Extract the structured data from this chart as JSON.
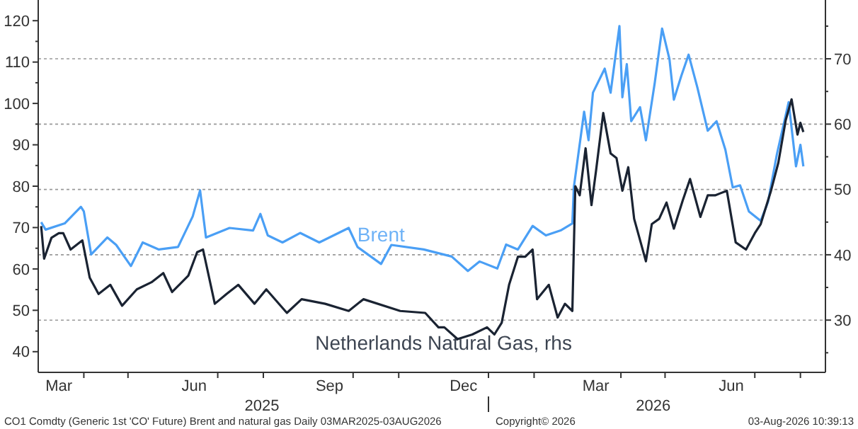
{
  "chart_data": {
    "type": "line",
    "xlim": [
      "2025-03-01",
      "2026-08-18"
    ],
    "xticks": [
      {
        "value": "2025-03-15",
        "label": "Mar"
      },
      {
        "value": "2025-04-01",
        "label": null
      },
      {
        "value": "2025-05-01",
        "label": null
      },
      {
        "value": "2025-06-15",
        "label": "Jun"
      },
      {
        "value": "2025-07-01",
        "label": null
      },
      {
        "value": "2025-08-01",
        "label": null
      },
      {
        "value": "2025-09-15",
        "label": "Sep"
      },
      {
        "value": "2025-10-01",
        "label": null
      },
      {
        "value": "2025-11-01",
        "label": null
      },
      {
        "value": "2025-12-15",
        "label": "Dec"
      },
      {
        "value": "2026-01-01",
        "label": null
      },
      {
        "value": "2026-02-01",
        "label": null
      },
      {
        "value": "2026-03-15",
        "label": "Mar"
      },
      {
        "value": "2026-04-01",
        "label": null
      },
      {
        "value": "2026-05-01",
        "label": null
      },
      {
        "value": "2026-06-15",
        "label": "Jun"
      },
      {
        "value": "2026-07-01",
        "label": null
      },
      {
        "value": "2026-08-01",
        "label": null
      }
    ],
    "x2lim": [
      "2025-03-01",
      "2026-08-18"
    ],
    "x2ticks": [
      {
        "value": "2025-07-31",
        "label": "2025"
      },
      {
        "value": "2026-01-01",
        "label": null
      },
      {
        "value": "2026-04-23",
        "label": "2026"
      }
    ],
    "ylim": [
      35,
      125
    ],
    "yticks": [
      40,
      {
        "value": 45,
        "label": null
      },
      50,
      {
        "value": 55,
        "label": null
      },
      60,
      {
        "value": 65,
        "label": null
      },
      70,
      {
        "value": 75,
        "label": null
      },
      80,
      {
        "value": 85,
        "label": null
      },
      90,
      {
        "value": 95,
        "label": null
      },
      100,
      {
        "value": 105,
        "label": null
      },
      110,
      {
        "value": 115,
        "label": null
      },
      120
    ],
    "y2lim": [
      22,
      79
    ],
    "y2ticks": [
      {
        "value": 25,
        "label": null
      },
      30,
      {
        "value": 35,
        "label": null
      },
      40,
      {
        "value": 45,
        "label": null
      },
      50,
      {
        "value": 55,
        "label": null
      },
      60,
      {
        "value": 65,
        "label": null
      },
      70,
      {
        "value": 75,
        "label": null
      }
    ],
    "grid": "y2",
    "series": [
      {
        "name": "Brent",
        "color": "#4a9ff5",
        "x": [
          "2025-03-03",
          "2025-03-06",
          "2025-03-19",
          "2025-03-30",
          "2025-04-01",
          "2025-04-06",
          "2025-04-17",
          "2025-04-23",
          "2025-05-03",
          "2025-05-11",
          "2025-05-22",
          "2025-06-04",
          "2025-06-14",
          "2025-06-19",
          "2025-06-23",
          "2025-07-09",
          "2025-07-25",
          "2025-07-30",
          "2025-08-04",
          "2025-08-14",
          "2025-08-26",
          "2025-09-08",
          "2025-09-28",
          "2025-10-04",
          "2025-10-20",
          "2025-10-27",
          "2025-11-18",
          "2025-12-07",
          "2025-12-18",
          "2025-12-26",
          "2026-01-07",
          "2026-01-13",
          "2026-01-21",
          "2026-01-31",
          "2026-02-09",
          "2026-02-19",
          "2026-02-27",
          "2026-02-28",
          "2026-03-07",
          "2026-03-10",
          "2026-03-13",
          "2026-03-21",
          "2026-03-25",
          "2026-03-31",
          "2026-04-02",
          "2026-04-05",
          "2026-04-08",
          "2026-04-14",
          "2026-04-18",
          "2026-04-24",
          "2026-04-29",
          "2026-05-04",
          "2026-05-07",
          "2026-05-12",
          "2026-05-17",
          "2026-05-23",
          "2026-05-30",
          "2026-06-05",
          "2026-06-11",
          "2026-06-16",
          "2026-06-21",
          "2026-06-27",
          "2026-07-05",
          "2026-07-10",
          "2026-07-16",
          "2026-07-24",
          "2026-07-29",
          "2026-08-01",
          "2026-08-03"
        ],
        "values": [
          71.3,
          69.5,
          71,
          75,
          73.9,
          63.5,
          67.6,
          65.8,
          60.7,
          66.4,
          64.7,
          65.3,
          72.7,
          79,
          67.6,
          69.9,
          69.3,
          73.3,
          68.1,
          66.4,
          68.7,
          66.4,
          69.9,
          65.3,
          61.2,
          65.8,
          64.7,
          63,
          59.5,
          61.8,
          60.1,
          65.9,
          64.7,
          70.4,
          68.1,
          69.3,
          71,
          79.7,
          98,
          91.1,
          102.6,
          108.4,
          102.6,
          118.7,
          101.5,
          109.5,
          95.7,
          99.1,
          91.1,
          105,
          118.1,
          110.7,
          100.9,
          106.6,
          111.8,
          103.8,
          93.4,
          95.7,
          88.8,
          79.7,
          80.2,
          73.9,
          71.6,
          76.2,
          87.7,
          100.3,
          84.8,
          90,
          84.8
        ]
      },
      {
        "name": "Netherlands Natural Gas, rhs",
        "color": "#1a2332",
        "axis": "y2",
        "x": [
          "2025-03-03",
          "2025-03-05",
          "2025-03-10",
          "2025-03-15",
          "2025-03-18",
          "2025-03-23",
          "2025-03-31",
          "2025-04-05",
          "2025-04-11",
          "2025-04-19",
          "2025-04-27",
          "2025-05-07",
          "2025-05-17",
          "2025-05-25",
          "2025-05-31",
          "2025-06-11",
          "2025-06-17",
          "2025-06-21",
          "2025-06-29",
          "2025-07-07",
          "2025-07-15",
          "2025-07-26",
          "2025-08-03",
          "2025-08-17",
          "2025-08-27",
          "2025-09-12",
          "2025-09-28",
          "2025-10-08",
          "2025-11-02",
          "2025-11-19",
          "2025-11-28",
          "2025-12-02",
          "2025-12-11",
          "2025-12-21",
          "2025-12-31",
          "2026-01-05",
          "2026-01-10",
          "2026-01-15",
          "2026-01-21",
          "2026-01-26",
          "2026-01-31",
          "2026-02-03",
          "2026-02-11",
          "2026-02-17",
          "2026-02-22",
          "2026-02-27",
          "2026-03-01",
          "2026-03-04",
          "2026-03-08",
          "2026-03-12",
          "2026-03-15",
          "2026-03-20",
          "2026-03-25",
          "2026-03-29",
          "2026-04-02",
          "2026-04-06",
          "2026-04-10",
          "2026-04-18",
          "2026-04-22",
          "2026-04-27",
          "2026-05-02",
          "2026-05-07",
          "2026-05-13",
          "2026-05-18",
          "2026-05-25",
          "2026-05-30",
          "2026-06-04",
          "2026-06-12",
          "2026-06-18",
          "2026-06-25",
          "2026-07-01",
          "2026-07-05",
          "2026-07-12",
          "2026-07-17",
          "2026-07-22",
          "2026-07-26",
          "2026-07-30",
          "2026-08-01",
          "2026-08-03"
        ],
        "values": [
          44.4,
          39.4,
          42.6,
          43.3,
          43.3,
          40.8,
          42.2,
          36.5,
          34,
          35.4,
          32.2,
          34.7,
          35.8,
          37.2,
          34.3,
          36.8,
          40.4,
          40.8,
          32.5,
          34,
          35.4,
          32.5,
          34.7,
          31.1,
          33.2,
          32.5,
          31.4,
          33.2,
          31.4,
          31.1,
          28.9,
          28.9,
          27.1,
          27.8,
          28.9,
          27.8,
          29.6,
          35.4,
          39.7,
          39.7,
          40.8,
          33.2,
          35.4,
          30.4,
          32.5,
          31.4,
          50.5,
          49.1,
          56.3,
          47.6,
          52.7,
          61.7,
          55.5,
          54.8,
          49.8,
          53.4,
          45.5,
          39,
          44.7,
          45.5,
          48,
          44,
          48.3,
          51.6,
          45.8,
          49.1,
          49.1,
          49.8,
          41.9,
          40.8,
          43.3,
          44.7,
          49.8,
          54.1,
          60.6,
          63.8,
          58.4,
          60.2,
          58.8
        ]
      }
    ],
    "annotations": [
      "CO1 Comdty (Generic 1st 'CO' Future) Brent and natural gas Daily 03MAR2025-03AUG2026",
      "Copyright© 2026",
      "03-Aug-2026 10:39:13"
    ]
  }
}
